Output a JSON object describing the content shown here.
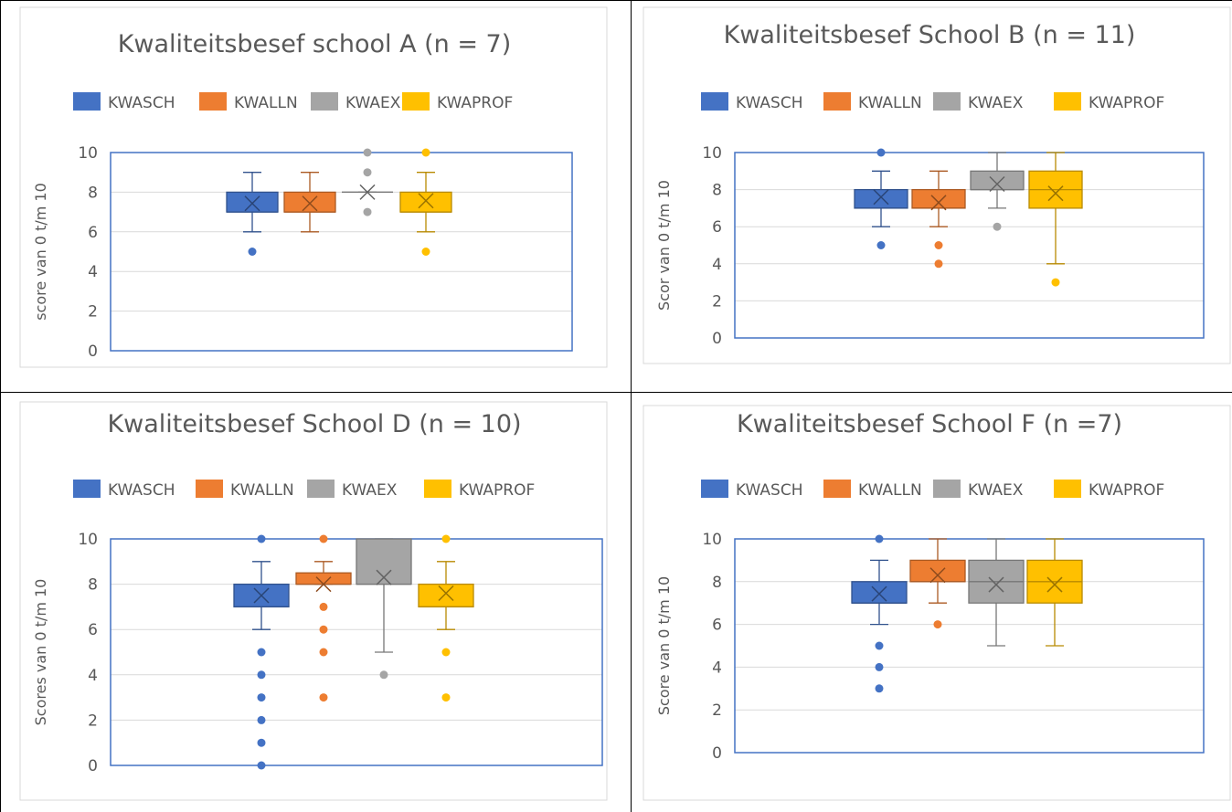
{
  "colors": {
    "KWASCH": "#4472C4",
    "KWALLN": "#ED7D31",
    "KWAEX": "#A5A5A5",
    "KWAPROF": "#FFC000"
  },
  "chart_data": [
    {
      "type": "box",
      "title": "Kwaliteitsbesef school A (n = 7)",
      "ylabel": "score van 0 t/m 10",
      "xlabel": "",
      "ylim": [
        0,
        10
      ],
      "yticks": [
        "0",
        "2",
        "4",
        "6",
        "8",
        "10"
      ],
      "legend": "top",
      "grid": true,
      "series": [
        {
          "name": "KWASCH",
          "q1": 7,
          "median": 7,
          "q3": 8,
          "mean": 7.43,
          "whisker_low": 6,
          "whisker_high": 9,
          "outliers": [
            5
          ]
        },
        {
          "name": "KWALLN",
          "q1": 7,
          "median": 7,
          "q3": 8,
          "mean": 7.43,
          "whisker_low": 6,
          "whisker_high": 9,
          "outliers": []
        },
        {
          "name": "KWAEX",
          "q1": 8,
          "median": 8,
          "q3": 8,
          "mean": 8.0,
          "whisker_low": 8,
          "whisker_high": 8,
          "outliers": [
            7,
            9,
            10
          ]
        },
        {
          "name": "KWAPROF",
          "q1": 7,
          "median": 7,
          "q3": 8,
          "mean": 7.57,
          "whisker_low": 6,
          "whisker_high": 9,
          "outliers": [
            5,
            10
          ]
        }
      ]
    },
    {
      "type": "box",
      "title": "Kwaliteitsbesef School B (n = 11)",
      "ylabel": "Scor van  0 t/m 10",
      "xlabel": "",
      "ylim": [
        0,
        10
      ],
      "yticks": [
        "0",
        "2",
        "4",
        "6",
        "8",
        "10"
      ],
      "legend": "top",
      "grid": true,
      "series": [
        {
          "name": "KWASCH",
          "q1": 7,
          "median": 7,
          "q3": 8,
          "mean": 7.6,
          "whisker_low": 6,
          "whisker_high": 9,
          "outliers": [
            5,
            10
          ]
        },
        {
          "name": "KWALLN",
          "q1": 7,
          "median": 7,
          "q3": 8,
          "mean": 7.3,
          "whisker_low": 6,
          "whisker_high": 9,
          "outliers": [
            4,
            5
          ]
        },
        {
          "name": "KWAEX",
          "q1": 8,
          "median": 8,
          "q3": 9,
          "mean": 8.3,
          "whisker_low": 7,
          "whisker_high": 10,
          "outliers": [
            6
          ]
        },
        {
          "name": "KWAPROF",
          "q1": 7,
          "median": 8,
          "q3": 9,
          "mean": 7.8,
          "whisker_low": 4,
          "whisker_high": 10,
          "outliers": [
            3
          ]
        }
      ]
    },
    {
      "type": "box",
      "title": "Kwaliteitsbesef School D (n = 10)",
      "ylabel": "Scores van 0 t/m 10",
      "xlabel": "",
      "ylim": [
        0,
        10
      ],
      "yticks": [
        "0",
        "2",
        "4",
        "6",
        "8",
        "10"
      ],
      "legend": "top",
      "grid": true,
      "series": [
        {
          "name": "KWASCH",
          "q1": 7,
          "median": 7,
          "q3": 8,
          "mean": 7.5,
          "whisker_low": 6,
          "whisker_high": 9,
          "outliers": [
            0,
            1,
            2,
            3,
            4,
            5,
            10
          ]
        },
        {
          "name": "KWALLN",
          "q1": 8,
          "median": 8,
          "q3": 8.5,
          "mean": 8.0,
          "whisker_low": 8,
          "whisker_high": 9,
          "outliers": [
            3,
            5,
            6,
            7,
            10
          ]
        },
        {
          "name": "KWAEX",
          "q1": 8,
          "median": 8,
          "q3": 10,
          "mean": 8.3,
          "whisker_low": 5,
          "whisker_high": 10,
          "outliers": [
            4
          ]
        },
        {
          "name": "KWAPROF",
          "q1": 7,
          "median": 7,
          "q3": 8,
          "mean": 7.6,
          "whisker_low": 6,
          "whisker_high": 9,
          "outliers": [
            3,
            5,
            10
          ]
        }
      ]
    },
    {
      "type": "box",
      "title": "Kwaliteitsbesef School F (n =7)",
      "ylabel": "Score van 0 t/m 10",
      "xlabel": "",
      "ylim": [
        0,
        10
      ],
      "yticks": [
        "0",
        "2",
        "4",
        "6",
        "8",
        "10"
      ],
      "legend": "top",
      "grid": true,
      "series": [
        {
          "name": "KWASCH",
          "q1": 7,
          "median": 7,
          "q3": 8,
          "mean": 7.43,
          "whisker_low": 6,
          "whisker_high": 9,
          "outliers": [
            3,
            4,
            5,
            10
          ]
        },
        {
          "name": "KWALLN",
          "q1": 8,
          "median": 8,
          "q3": 9,
          "mean": 8.3,
          "whisker_low": 7,
          "whisker_high": 10,
          "outliers": [
            6
          ]
        },
        {
          "name": "KWAEX",
          "q1": 7,
          "median": 8,
          "q3": 9,
          "mean": 7.86,
          "whisker_low": 5,
          "whisker_high": 10,
          "outliers": []
        },
        {
          "name": "KWAPROF",
          "q1": 7,
          "median": 8,
          "q3": 9,
          "mean": 7.86,
          "whisker_low": 5,
          "whisker_high": 10,
          "outliers": []
        }
      ]
    }
  ]
}
